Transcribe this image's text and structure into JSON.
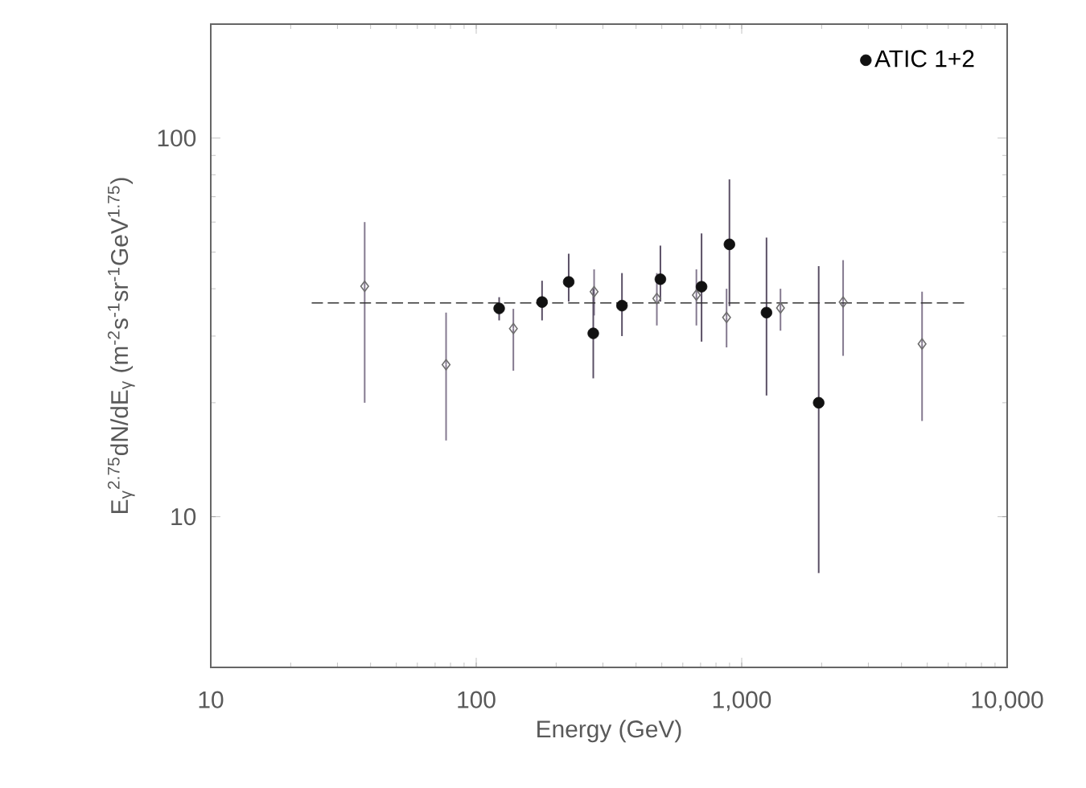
{
  "chart_data": {
    "type": "scatter",
    "xlabel": "Energy (GeV)",
    "ylabel": "E$_{γ}$$^{2.75}$dN/dE$_{γ}$ (m$^{-2}$s$^{-1}$sr$^{-1}$GeV$^{1.75}$)",
    "log": "xy",
    "xlim": [
      10,
      10000
    ],
    "ylim": [
      4,
      200
    ],
    "xticks": [
      10,
      100,
      {
        "value": 1000,
        "label": "1,000"
      },
      {
        "value": 10000,
        "label": "10,000"
      }
    ],
    "yticks": [
      10,
      100
    ],
    "legend": "top right",
    "series": [
      {
        "type": "scatter",
        "marker": "diamond",
        "color": "#6e6e6e",
        "x": [
          38,
          77,
          138,
          278,
          479,
          675,
          877,
          1400,
          2410,
          4780
        ],
        "values": [
          40.6,
          25.2,
          31.4,
          39.3,
          37.7,
          38.5,
          33.6,
          35.6,
          36.9,
          28.6
        ],
        "errors": [
          [
            20,
            60
          ],
          [
            15.9,
            34.6
          ],
          [
            24.3,
            35.4
          ],
          [
            34,
            45
          ],
          [
            32,
            44
          ],
          [
            32,
            45
          ],
          [
            28,
            40
          ],
          [
            31,
            40
          ],
          [
            26.6,
            47.6
          ],
          [
            17.9,
            39.3
          ]
        ]
      },
      {
        "type": "scatter",
        "name": "ATIC 1+2",
        "marker": "circle",
        "color": "#111111",
        "x": [
          122,
          177,
          223,
          276,
          354,
          494,
          706,
          899,
          1240,
          1950
        ],
        "values": [
          35.5,
          36.9,
          41.7,
          30.5,
          36.1,
          42.4,
          40.5,
          52.4,
          34.6,
          20.0
        ],
        "errors": [
          [
            33,
            38
          ],
          [
            33,
            42
          ],
          [
            37,
            49.5
          ],
          [
            23.2,
            40
          ],
          [
            30,
            44
          ],
          [
            37,
            52
          ],
          [
            29,
            56
          ],
          [
            36,
            77.8
          ],
          [
            20.9,
            54.6
          ],
          [
            7.1,
            45.9
          ]
        ]
      },
      {
        "type": "line",
        "line_style": "dashed",
        "marker": "none",
        "color": "#333333",
        "x": [
          24,
          7140
        ],
        "values": [
          36.7,
          36.7
        ]
      }
    ]
  }
}
